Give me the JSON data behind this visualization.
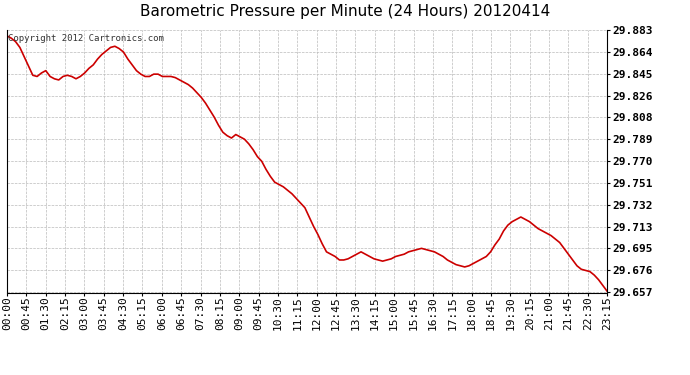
{
  "title": "Barometric Pressure per Minute (24 Hours) 20120414",
  "copyright_text": "Copyright 2012 Cartronics.com",
  "line_color": "#cc0000",
  "background_color": "#ffffff",
  "grid_color": "#bbbbbb",
  "ylim": [
    29.657,
    29.883
  ],
  "yticks": [
    29.883,
    29.864,
    29.845,
    29.826,
    29.808,
    29.789,
    29.77,
    29.751,
    29.732,
    29.713,
    29.695,
    29.676,
    29.657
  ],
  "xtick_labels": [
    "00:00",
    "00:45",
    "01:30",
    "02:15",
    "03:00",
    "03:45",
    "04:30",
    "05:15",
    "06:00",
    "06:45",
    "07:30",
    "08:15",
    "09:00",
    "09:45",
    "10:30",
    "11:15",
    "12:00",
    "12:45",
    "13:30",
    "14:15",
    "15:00",
    "15:45",
    "16:30",
    "17:15",
    "18:00",
    "18:45",
    "19:30",
    "20:15",
    "21:00",
    "21:45",
    "22:30",
    "23:15"
  ],
  "title_fontsize": 11,
  "tick_fontsize": 8,
  "copyright_fontsize": 6.5,
  "line_width": 1.2,
  "pressure_data": [
    29.878,
    29.876,
    29.873,
    29.868,
    29.86,
    29.852,
    29.844,
    29.843,
    29.846,
    29.848,
    29.843,
    29.841,
    29.84,
    29.843,
    29.844,
    29.843,
    29.841,
    29.843,
    29.846,
    29.85,
    29.853,
    29.858,
    29.862,
    29.865,
    29.868,
    29.869,
    29.867,
    29.864,
    29.858,
    29.853,
    29.848,
    29.845,
    29.843,
    29.843,
    29.845,
    29.845,
    29.843,
    29.843,
    29.843,
    29.842,
    29.84,
    29.838,
    29.836,
    29.833,
    29.829,
    29.825,
    29.82,
    29.814,
    29.808,
    29.801,
    29.795,
    29.792,
    29.79,
    29.793,
    29.791,
    29.789,
    29.785,
    29.78,
    29.774,
    29.77,
    29.763,
    29.757,
    29.752,
    29.75,
    29.748,
    29.745,
    29.742,
    29.738,
    29.734,
    29.73,
    29.722,
    29.714,
    29.707,
    29.699,
    29.692,
    29.69,
    29.688,
    29.685,
    29.685,
    29.686,
    29.688,
    29.69,
    29.692,
    29.69,
    29.688,
    29.686,
    29.685,
    29.684,
    29.685,
    29.686,
    29.688,
    29.689,
    29.69,
    29.692,
    29.693,
    29.694,
    29.695,
    29.694,
    29.693,
    29.692,
    29.69,
    29.688,
    29.685,
    29.683,
    29.681,
    29.68,
    29.679,
    29.68,
    29.682,
    29.684,
    29.686,
    29.688,
    29.692,
    29.698,
    29.703,
    29.71,
    29.715,
    29.718,
    29.72,
    29.722,
    29.72,
    29.718,
    29.715,
    29.712,
    29.71,
    29.708,
    29.706,
    29.703,
    29.7,
    29.695,
    29.69,
    29.685,
    29.68,
    29.677,
    29.676,
    29.675,
    29.672,
    29.668,
    29.663,
    29.658
  ]
}
